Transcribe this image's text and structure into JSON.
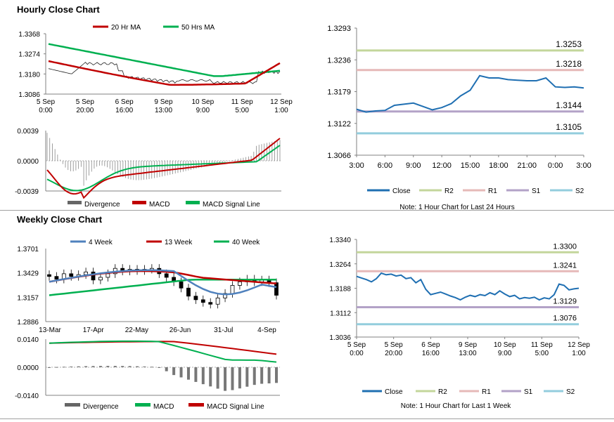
{
  "hourly": {
    "title": "Hourly Close Chart",
    "price_panel": {
      "legend": [
        {
          "name": "20 Hr MA",
          "color": "#c00000"
        },
        {
          "name": "50 Hrs MA",
          "color": "#00b050"
        }
      ],
      "y_ticks": [
        "1.3368",
        "1.3274",
        "1.3180",
        "1.3086"
      ],
      "x_ticks": [
        [
          "5 Sep",
          "0:00"
        ],
        [
          "5 Sep",
          "20:00"
        ],
        [
          "6 Sep",
          "16:00"
        ],
        [
          "9 Sep",
          "13:00"
        ],
        [
          "10 Sep",
          "9:00"
        ],
        [
          "11 Sep",
          "5:00"
        ],
        [
          "12 Sep",
          "1:00"
        ]
      ]
    },
    "macd_panel": {
      "y_ticks": [
        "0.0039",
        "0.0000",
        "-0.0039"
      ],
      "legend": [
        {
          "name": "Divergence",
          "color": "#666666"
        },
        {
          "name": "MACD",
          "color": "#c00000"
        },
        {
          "name": "MACD Signal Line",
          "color": "#00b050"
        }
      ]
    }
  },
  "weekly": {
    "title": "Weekly Close Chart",
    "price_panel": {
      "legend": [
        {
          "name": "4 Week",
          "color": "#4f81bd"
        },
        {
          "name": "13 Week",
          "color": "#c00000"
        },
        {
          "name": "40 Week",
          "color": "#00b050"
        }
      ],
      "y_ticks": [
        "1.3701",
        "1.3429",
        "1.3157",
        "1.2886"
      ],
      "x_ticks": [
        "13-Mar",
        "17-Apr",
        "22-May",
        "26-Jun",
        "31-Jul",
        "4-Sep"
      ]
    },
    "macd_panel": {
      "y_ticks": [
        "0.0140",
        "0.0000",
        "-0.0140"
      ],
      "legend": [
        {
          "name": "Divergence",
          "color": "#666666"
        },
        {
          "name": "MACD",
          "color": "#00b050"
        },
        {
          "name": "MACD Signal Line",
          "color": "#c00000"
        }
      ]
    }
  },
  "chart_data": [
    {
      "type": "line",
      "id": "hourly-24h",
      "title": "",
      "x_ticks": [
        "3:00",
        "6:00",
        "9:00",
        "12:00",
        "15:00",
        "18:00",
        "21:00",
        "0:00",
        "3:00"
      ],
      "y_ticks": [
        "1.3293",
        "1.3236",
        "1.3179",
        "1.3122",
        "1.3066"
      ],
      "ylim": [
        1.3066,
        1.3293
      ],
      "series": [
        {
          "name": "Close",
          "color": "#1f6fb2",
          "values": [
            1.3148,
            1.3143,
            1.3145,
            1.3146,
            1.3155,
            1.3157,
            1.3159,
            1.3153,
            1.3147,
            1.3151,
            1.3158,
            1.3172,
            1.3182,
            1.3208,
            1.3204,
            1.3204,
            1.3201,
            1.32,
            1.3199,
            1.3199,
            1.3204,
            1.3188,
            1.3187,
            1.3188,
            1.3186
          ]
        },
        {
          "name": "R2",
          "color": "#c3d69b",
          "level": 1.3253
        },
        {
          "name": "R1",
          "color": "#e6b9b8",
          "level": 1.3218
        },
        {
          "name": "S1",
          "color": "#b3a2c7",
          "level": 1.3144
        },
        {
          "name": "S2",
          "color": "#93cddd",
          "level": 1.3105
        }
      ],
      "level_labels": [
        "1.3253",
        "1.3218",
        "1.3144",
        "1.3105"
      ],
      "note": "Note: 1 Hour Chart for Last 24 Hours"
    },
    {
      "type": "line",
      "id": "hourly-1w",
      "title": "",
      "x_ticks": [
        [
          "5 Sep",
          "0:00"
        ],
        [
          "5 Sep",
          "20:00"
        ],
        [
          "6 Sep",
          "16:00"
        ],
        [
          "9 Sep",
          "13:00"
        ],
        [
          "10 Sep",
          "9:00"
        ],
        [
          "11 Sep",
          "5:00"
        ],
        [
          "12 Sep",
          "1:00"
        ]
      ],
      "y_ticks": [
        "1.3340",
        "1.3264",
        "1.3188",
        "1.3112",
        "1.3036"
      ],
      "ylim": [
        1.3036,
        1.334
      ],
      "series": [
        {
          "name": "Close",
          "color": "#1f6fb2",
          "values": [
            1.3225,
            1.322,
            1.3215,
            1.3208,
            1.3218,
            1.3235,
            1.323,
            1.3232,
            1.3226,
            1.3229,
            1.3218,
            1.3221,
            1.3205,
            1.3215,
            1.3185,
            1.3168,
            1.3172,
            1.3176,
            1.317,
            1.3164,
            1.3159,
            1.3152,
            1.316,
            1.3166,
            1.3162,
            1.3168,
            1.3165,
            1.3174,
            1.3168,
            1.318,
            1.317,
            1.3162,
            1.3166,
            1.3155,
            1.3159,
            1.3157,
            1.316,
            1.3152,
            1.3158,
            1.3155,
            1.3168,
            1.3201,
            1.3197,
            1.3183,
            1.3186,
            1.3188
          ]
        },
        {
          "name": "R2",
          "color": "#c3d69b",
          "level": 1.33
        },
        {
          "name": "R1",
          "color": "#e6b9b8",
          "level": 1.3241
        },
        {
          "name": "S1",
          "color": "#b3a2c7",
          "level": 1.3129
        },
        {
          "name": "S2",
          "color": "#93cddd",
          "level": 1.3076
        }
      ],
      "level_labels": [
        "1.3300",
        "1.3241",
        "1.3129",
        "1.3076"
      ],
      "note": "Note: 1 Hour Chart for Last 1 Week"
    }
  ]
}
